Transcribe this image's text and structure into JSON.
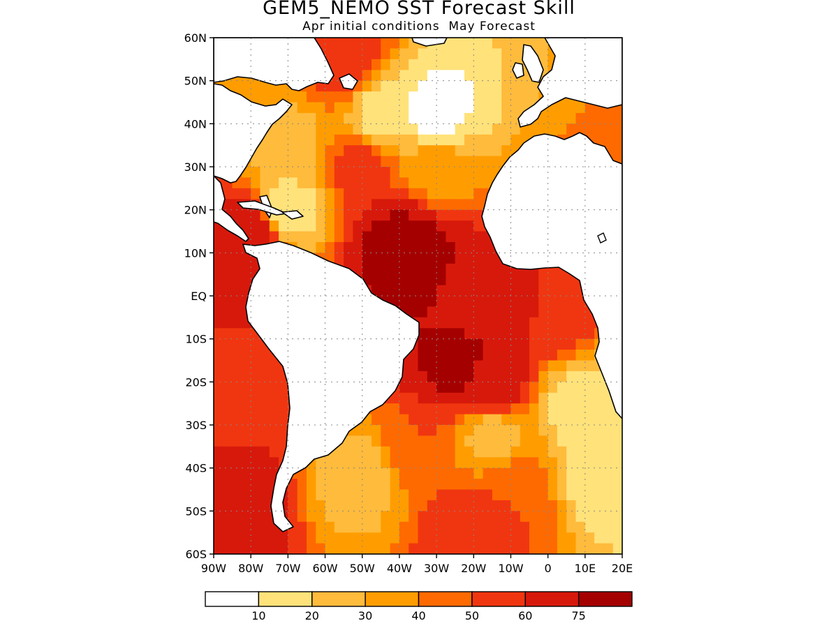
{
  "title": "GEM5_NEMO SST Forecast Skill",
  "subtitle": "Apr initial conditions  May Forecast",
  "map": {
    "lon_range": [
      -90,
      20
    ],
    "lat_range": [
      -60,
      60
    ],
    "lat_ticks": [
      {
        "value": 60,
        "label": "60N"
      },
      {
        "value": 50,
        "label": "50N"
      },
      {
        "value": 40,
        "label": "40N"
      },
      {
        "value": 30,
        "label": "30N"
      },
      {
        "value": 20,
        "label": "20N"
      },
      {
        "value": 10,
        "label": "10N"
      },
      {
        "value": 0,
        "label": "EQ"
      },
      {
        "value": -10,
        "label": "10S"
      },
      {
        "value": -20,
        "label": "20S"
      },
      {
        "value": -30,
        "label": "30S"
      },
      {
        "value": -40,
        "label": "40S"
      },
      {
        "value": -50,
        "label": "50S"
      },
      {
        "value": -60,
        "label": "60S"
      }
    ],
    "lon_ticks": [
      {
        "value": -90,
        "label": "90W"
      },
      {
        "value": -80,
        "label": "80W"
      },
      {
        "value": -70,
        "label": "70W"
      },
      {
        "value": -60,
        "label": "60W"
      },
      {
        "value": -50,
        "label": "50W"
      },
      {
        "value": -40,
        "label": "40W"
      },
      {
        "value": -30,
        "label": "30W"
      },
      {
        "value": -20,
        "label": "20W"
      },
      {
        "value": -10,
        "label": "10W"
      },
      {
        "value": 0,
        "label": "0"
      },
      {
        "value": 10,
        "label": "10E"
      },
      {
        "value": 20,
        "label": "20E"
      }
    ],
    "grid": true,
    "land_color": "#ffffff",
    "coast_color": "#000000"
  },
  "colorbar": {
    "colors": [
      "#ffffff",
      "#ffe27a",
      "#ffbb3c",
      "#ff9d00",
      "#ff6a00",
      "#f03610",
      "#d7190c",
      "#a50000"
    ],
    "labels": [
      "10",
      "20",
      "30",
      "40",
      "50",
      "60",
      "75"
    ]
  },
  "chart_data": {
    "type": "heatmap",
    "title": "GEM5_NEMO SST Forecast Skill",
    "subtitle": "Apr initial conditions  May Forecast",
    "xrange": [
      -90,
      20
    ],
    "yrange": [
      -60,
      60
    ],
    "levels": [
      10,
      20,
      30,
      40,
      50,
      60,
      75
    ],
    "regions": [
      {
        "lon": -80,
        "lat": 50,
        "value": 40
      },
      {
        "lon": -55,
        "lat": 55,
        "value": 60
      },
      {
        "lon": -45,
        "lat": 42,
        "value": 15
      },
      {
        "lon": -30,
        "lat": 42,
        "value": 5
      },
      {
        "lon": -70,
        "lat": 35,
        "value": 25
      },
      {
        "lon": -50,
        "lat": 30,
        "value": 55
      },
      {
        "lon": -30,
        "lat": 30,
        "value": 35
      },
      {
        "lon": -70,
        "lat": 20,
        "value": 15
      },
      {
        "lon": -40,
        "lat": 12,
        "value": 80
      },
      {
        "lon": -35,
        "lat": 8,
        "value": 82
      },
      {
        "lon": -80,
        "lat": 14,
        "value": 70
      },
      {
        "lon": -85,
        "lat": 5,
        "value": 70
      },
      {
        "lon": -20,
        "lat": 0,
        "value": 65
      },
      {
        "lon": 0,
        "lat": -5,
        "value": 60
      },
      {
        "lon": -25,
        "lat": -15,
        "value": 80
      },
      {
        "lon": -15,
        "lat": -20,
        "value": 70
      },
      {
        "lon": 8,
        "lat": -25,
        "value": 15
      },
      {
        "lon": -85,
        "lat": -20,
        "value": 55
      },
      {
        "lon": -35,
        "lat": -35,
        "value": 50
      },
      {
        "lon": -15,
        "lat": -33,
        "value": 25
      },
      {
        "lon": -50,
        "lat": -42,
        "value": 25
      },
      {
        "lon": -10,
        "lat": -45,
        "value": 50
      },
      {
        "lon": 15,
        "lat": -40,
        "value": 10
      },
      {
        "lon": -85,
        "lat": -50,
        "value": 70
      },
      {
        "lon": -20,
        "lat": -55,
        "value": 60
      }
    ]
  }
}
